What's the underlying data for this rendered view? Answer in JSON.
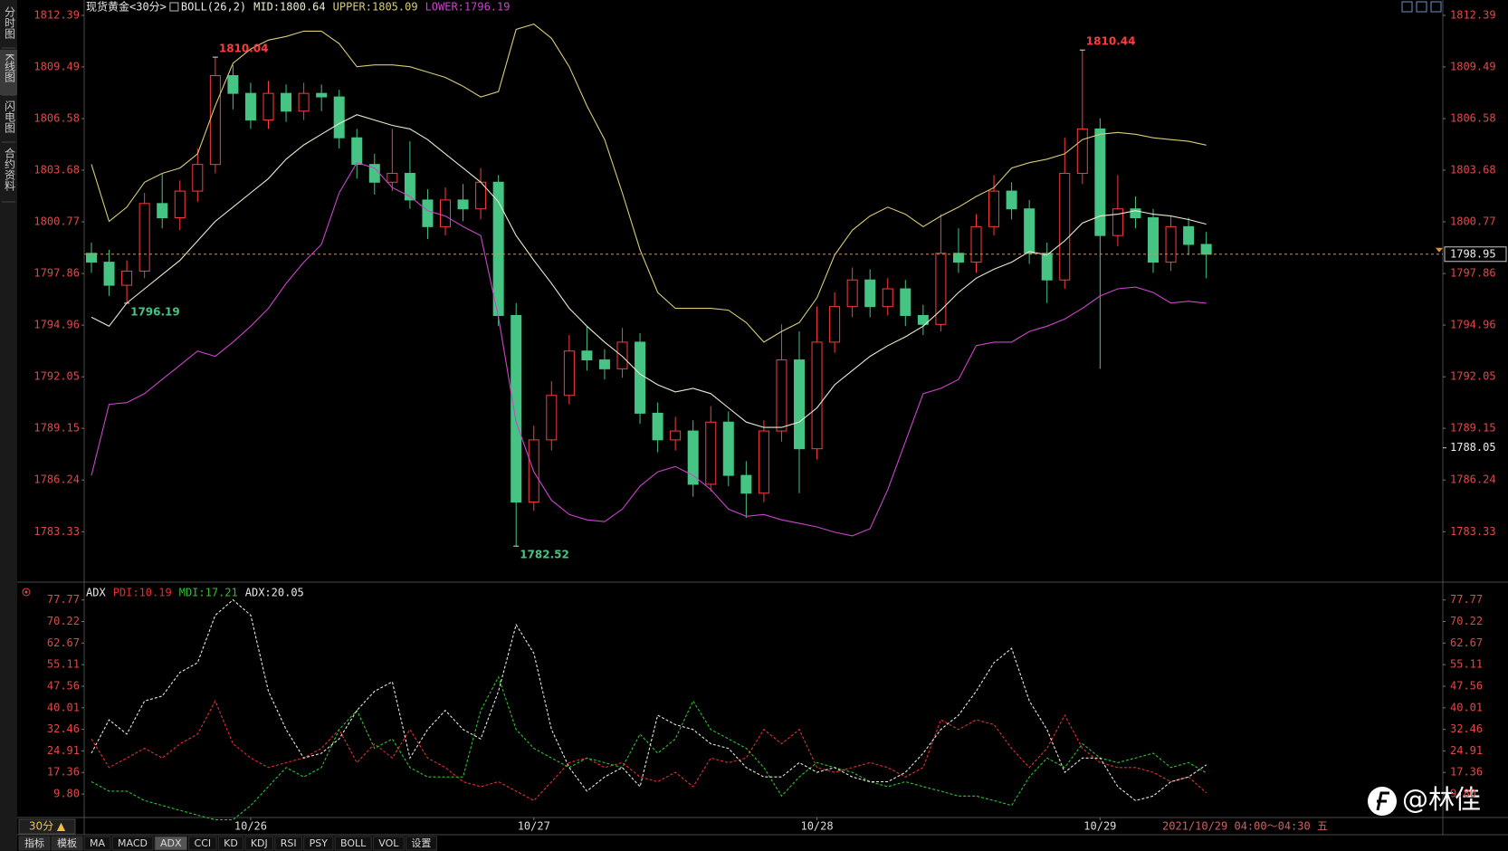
{
  "chart_data": [
    {
      "type": "candlestick",
      "title": "现货黄金<30分>",
      "indicator": "BOLL(26,2)",
      "up_color": "#ff3b3b",
      "down_color": "#45c484",
      "ylim": [
        1780.8,
        1813.0
      ],
      "yticks": [
        1812.39,
        1809.49,
        1806.58,
        1803.68,
        1800.77,
        1797.86,
        1794.96,
        1792.05,
        1789.15,
        1786.24,
        1783.33
      ],
      "open": [
        1799.0,
        1798.5,
        1797.2,
        1798.0,
        1801.8,
        1801.0,
        1802.5,
        1804.0,
        1809.0,
        1808.0,
        1806.5,
        1808.0,
        1807.0,
        1808.0,
        1807.8,
        1805.5,
        1804.0,
        1803.0,
        1803.5,
        1802.0,
        1800.5,
        1802.0,
        1801.5,
        1803.0,
        1795.5,
        1785.0,
        1788.5,
        1791.0,
        1793.5,
        1793.0,
        1792.5,
        1794.0,
        1790.0,
        1788.5,
        1789.0,
        1786.0,
        1789.5,
        1786.5,
        1785.5,
        1789.0,
        1793.0,
        1788.0,
        1794.0,
        1796.0,
        1797.5,
        1796.0,
        1797.0,
        1795.5,
        1795.0,
        1799.0,
        1798.5,
        1800.5,
        1802.5,
        1801.5,
        1799.0,
        1797.5,
        1803.5,
        1806.0,
        1800.0,
        1801.5,
        1801.0,
        1798.5,
        1800.5,
        1799.5
      ],
      "high": [
        1799.6,
        1799.2,
        1798.6,
        1802.4,
        1803.5,
        1803.1,
        1804.9,
        1810.04,
        1809.6,
        1808.6,
        1808.7,
        1808.5,
        1808.6,
        1808.5,
        1808.2,
        1806.0,
        1804.6,
        1806.0,
        1805.3,
        1802.6,
        1802.7,
        1802.9,
        1803.8,
        1803.4,
        1796.2,
        1789.3,
        1791.8,
        1794.4,
        1794.9,
        1793.6,
        1794.8,
        1794.5,
        1790.6,
        1789.8,
        1789.6,
        1790.4,
        1790.1,
        1787.3,
        1789.6,
        1795.0,
        1794.6,
        1796.0,
        1796.8,
        1798.2,
        1798.1,
        1797.6,
        1797.5,
        1796.1,
        1801.2,
        1800.4,
        1801.2,
        1803.4,
        1803.0,
        1802.0,
        1799.6,
        1805.5,
        1810.44,
        1806.6,
        1803.4,
        1802.2,
        1801.5,
        1801.1,
        1801.0,
        1800.2
      ],
      "low": [
        1797.9,
        1796.6,
        1796.19,
        1797.6,
        1800.4,
        1800.3,
        1801.9,
        1803.5,
        1807.1,
        1806.0,
        1806.0,
        1806.4,
        1806.5,
        1807.0,
        1804.9,
        1803.2,
        1802.3,
        1802.5,
        1801.5,
        1799.8,
        1800.0,
        1800.8,
        1800.9,
        1794.9,
        1782.52,
        1784.5,
        1787.9,
        1790.5,
        1792.4,
        1791.9,
        1792.0,
        1789.4,
        1787.8,
        1787.9,
        1785.3,
        1785.6,
        1785.9,
        1784.1,
        1785.0,
        1788.4,
        1785.5,
        1787.4,
        1793.4,
        1795.4,
        1795.4,
        1795.5,
        1794.9,
        1794.4,
        1794.6,
        1797.9,
        1797.9,
        1800.0,
        1800.9,
        1798.4,
        1796.2,
        1797.0,
        1802.9,
        1792.5,
        1799.4,
        1800.4,
        1797.9,
        1798.0,
        1798.9,
        1797.6
      ],
      "close": [
        1798.5,
        1797.2,
        1798.0,
        1801.8,
        1801.0,
        1802.5,
        1804.0,
        1809.0,
        1808.0,
        1806.5,
        1808.0,
        1807.0,
        1808.0,
        1807.8,
        1805.5,
        1804.0,
        1803.0,
        1803.5,
        1802.0,
        1800.5,
        1802.0,
        1801.5,
        1803.0,
        1795.5,
        1785.0,
        1788.5,
        1791.0,
        1793.5,
        1793.0,
        1792.5,
        1794.0,
        1790.0,
        1788.5,
        1789.0,
        1786.0,
        1789.5,
        1786.5,
        1785.5,
        1789.0,
        1793.0,
        1788.0,
        1794.0,
        1796.0,
        1797.5,
        1796.0,
        1797.0,
        1795.5,
        1795.0,
        1799.0,
        1798.5,
        1800.5,
        1802.5,
        1801.5,
        1799.0,
        1797.5,
        1803.5,
        1806.0,
        1800.0,
        1801.5,
        1801.0,
        1798.5,
        1800.5,
        1799.5,
        1798.95
      ],
      "series": [
        {
          "name": "MID:1800.64",
          "color": "#ecead0",
          "values": [
            1795.4,
            1794.9,
            1796.2,
            1797.0,
            1797.8,
            1798.6,
            1799.7,
            1800.8,
            1801.6,
            1802.4,
            1803.2,
            1804.3,
            1805.1,
            1805.7,
            1806.3,
            1806.8,
            1806.5,
            1806.2,
            1806.0,
            1805.4,
            1804.6,
            1803.8,
            1803.0,
            1801.9,
            1800.0,
            1798.6,
            1797.3,
            1795.9,
            1794.9,
            1794.0,
            1793.2,
            1792.2,
            1791.6,
            1791.2,
            1791.4,
            1791.1,
            1790.3,
            1789.5,
            1789.2,
            1789.2,
            1789.5,
            1790.3,
            1791.6,
            1792.4,
            1793.2,
            1793.8,
            1794.3,
            1794.9,
            1795.8,
            1796.8,
            1797.6,
            1798.1,
            1798.5,
            1799.1,
            1798.9,
            1799.7,
            1800.7,
            1801.1,
            1801.2,
            1801.4,
            1801.2,
            1801.1,
            1800.9,
            1800.64
          ]
        },
        {
          "name": "UPPER:1805.09",
          "color": "#d8cc78",
          "values": [
            1804.0,
            1800.8,
            1801.6,
            1803.0,
            1803.5,
            1803.8,
            1804.6,
            1807.3,
            1809.7,
            1810.5,
            1811.0,
            1811.2,
            1811.5,
            1811.5,
            1810.8,
            1809.5,
            1809.6,
            1809.6,
            1809.5,
            1809.2,
            1808.9,
            1808.4,
            1807.8,
            1808.1,
            1811.6,
            1811.9,
            1811.1,
            1809.5,
            1807.3,
            1805.4,
            1802.4,
            1799.2,
            1796.8,
            1795.9,
            1795.9,
            1795.9,
            1795.8,
            1795.1,
            1794.0,
            1794.6,
            1795.1,
            1796.5,
            1798.9,
            1800.3,
            1801.1,
            1801.6,
            1801.2,
            1800.5,
            1801.1,
            1801.6,
            1802.2,
            1802.7,
            1803.8,
            1804.1,
            1804.3,
            1804.6,
            1805.4,
            1805.7,
            1805.8,
            1805.7,
            1805.5,
            1805.4,
            1805.3,
            1805.09
          ]
        },
        {
          "name": "LOWER:1796.19",
          "color": "#cc44cc",
          "values": [
            1786.5,
            1790.5,
            1790.6,
            1791.1,
            1791.9,
            1792.7,
            1793.5,
            1793.2,
            1794.0,
            1794.9,
            1795.9,
            1797.3,
            1798.5,
            1799.5,
            1802.4,
            1804.1,
            1803.8,
            1802.7,
            1802.2,
            1801.4,
            1801.1,
            1800.5,
            1800.0,
            1795.4,
            1789.5,
            1786.7,
            1785.1,
            1784.3,
            1784.0,
            1783.9,
            1784.6,
            1785.9,
            1786.7,
            1787.0,
            1786.5,
            1785.7,
            1784.6,
            1784.2,
            1784.3,
            1784.0,
            1783.8,
            1783.6,
            1783.3,
            1783.1,
            1783.5,
            1785.7,
            1788.4,
            1791.1,
            1791.4,
            1791.9,
            1793.8,
            1794.0,
            1794.0,
            1794.6,
            1794.9,
            1795.3,
            1795.9,
            1796.6,
            1797.0,
            1797.1,
            1796.8,
            1796.2,
            1796.3,
            1796.19
          ]
        }
      ],
      "extremes": [
        1810.04,
        1796.19,
        1782.52,
        1810.44
      ],
      "last_price": 1798.95,
      "mark_price": 1788.05
    },
    {
      "type": "line",
      "indicator": "ADX",
      "dashed": true,
      "ylim": [
        0,
        81.8
      ],
      "yticks": [
        77.77,
        70.22,
        62.67,
        55.11,
        47.56,
        40.01,
        32.46,
        24.91,
        17.36,
        {
          "value": 9.8,
          "label": "9.80"
        }
      ],
      "categories": [
        null,
        null,
        null,
        null,
        null,
        null,
        null,
        null,
        null,
        "10/26",
        null,
        null,
        null,
        null,
        null,
        null,
        null,
        null,
        null,
        null,
        null,
        null,
        null,
        null,
        null,
        "10/27",
        null,
        null,
        null,
        null,
        null,
        null,
        null,
        null,
        null,
        null,
        null,
        null,
        null,
        null,
        null,
        "10/28",
        null,
        null,
        null,
        null,
        null,
        null,
        null,
        null,
        null,
        null,
        null,
        null,
        null,
        null,
        null,
        "10/29",
        null,
        null,
        null,
        null,
        null,
        null
      ],
      "series": [
        {
          "name": "PDI:10.19",
          "color": "#e03030",
          "values": [
            29.1,
            19.1,
            22.4,
            25.8,
            22.4,
            27.4,
            30.8,
            42.4,
            27.4,
            22.4,
            19.1,
            20.8,
            22.4,
            25.8,
            32.4,
            20.8,
            27.4,
            22.4,
            32.4,
            22.4,
            19.1,
            14.1,
            12.4,
            14.1,
            10.8,
            7.5,
            14.1,
            20.8,
            22.4,
            19.1,
            20.8,
            15.8,
            14.1,
            17.4,
            12.4,
            22.4,
            20.8,
            22.4,
            32.4,
            27.4,
            32.4,
            19.1,
            17.4,
            19.1,
            20.8,
            19.1,
            15.8,
            19.1,
            35.8,
            32.4,
            35.8,
            34.1,
            25.8,
            19.1,
            25.8,
            37.4,
            25.8,
            20.8,
            19.1,
            19.1,
            17.4,
            14.1,
            15.8,
            10.19
          ]
        },
        {
          "name": "MDI:17.21",
          "color": "#30c030",
          "values": [
            14.1,
            10.8,
            10.8,
            7.5,
            5.8,
            4.1,
            2.4,
            0.8,
            0.8,
            5.8,
            12.4,
            19.1,
            15.8,
            19.1,
            32.4,
            39.1,
            25.8,
            29.1,
            19.1,
            15.8,
            15.8,
            15.8,
            39.1,
            50.8,
            32.4,
            25.8,
            22.4,
            19.1,
            22.4,
            20.8,
            19.1,
            30.8,
            24.1,
            29.1,
            42.4,
            32.4,
            29.1,
            25.8,
            19.1,
            9.1,
            15.8,
            20.8,
            19.1,
            17.4,
            14.1,
            12.4,
            14.1,
            12.4,
            10.8,
            9.1,
            9.1,
            7.5,
            5.8,
            15.8,
            22.4,
            19.1,
            27.4,
            22.4,
            20.8,
            22.4,
            24.1,
            19.1,
            20.8,
            17.21
          ]
        },
        {
          "name": "ADX:20.05",
          "color": "#e8e8e0",
          "values": [
            24.1,
            35.8,
            30.8,
            42.4,
            44.1,
            52.4,
            55.8,
            72.4,
            77.8,
            72.4,
            45.8,
            32.4,
            22.4,
            24.1,
            29.1,
            39.1,
            45.8,
            49.1,
            22.4,
            32.4,
            39.1,
            32.4,
            29.1,
            45.8,
            69.1,
            59.1,
            32.4,
            19.1,
            10.8,
            15.8,
            19.1,
            12.4,
            37.4,
            34.1,
            32.4,
            27.4,
            25.8,
            19.1,
            15.8,
            15.8,
            20.8,
            17.4,
            19.1,
            15.8,
            14.1,
            14.1,
            17.4,
            24.1,
            32.4,
            37.4,
            45.8,
            55.8,
            60.8,
            42.4,
            32.4,
            17.4,
            22.4,
            22.4,
            12.4,
            7.5,
            9.1,
            14.1,
            15.8,
            20.05
          ]
        }
      ]
    }
  ],
  "sidebar": [
    "分时图",
    "K线图",
    "闪电图",
    "合约资料"
  ],
  "sidebar_active": 1,
  "period": "30分 ▲",
  "timestamp": "2021/10/29 04:00～04:30 五",
  "tabs": [
    "指标",
    "模板",
    "MA",
    "MACD",
    "ADX",
    "CCI",
    "KD",
    "KDJ",
    "RSI",
    "PSY",
    "BOLL",
    "VOL",
    "设置"
  ],
  "active_tab": 4,
  "watermark": "@林佳"
}
